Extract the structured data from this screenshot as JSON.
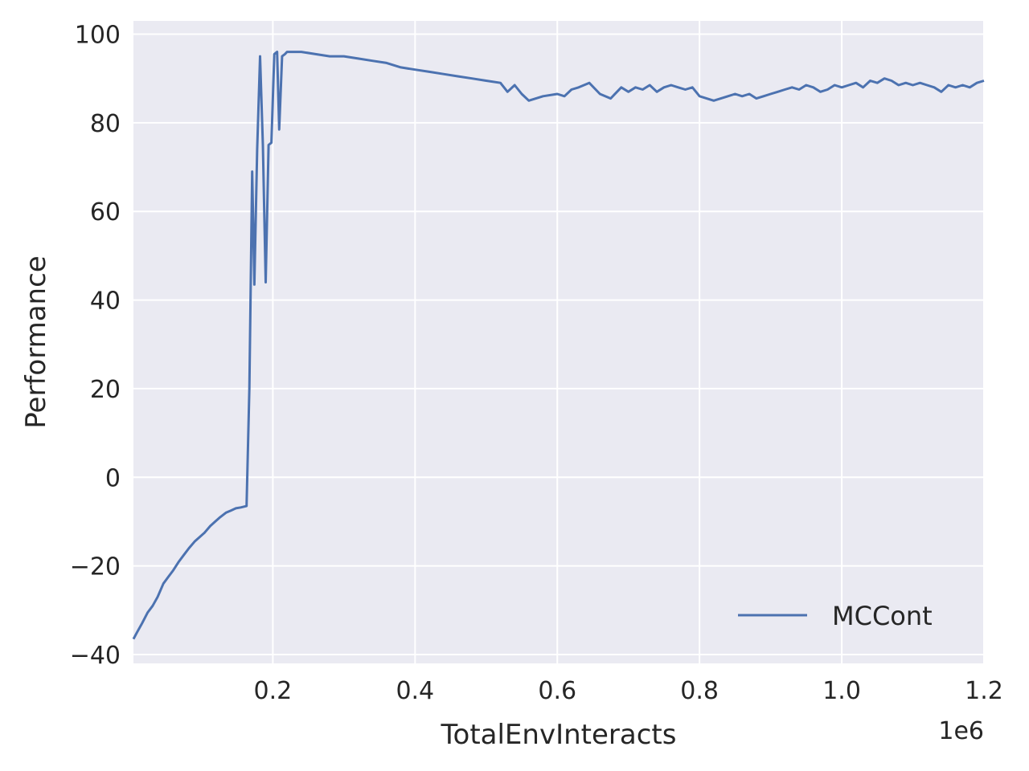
{
  "chart_data": {
    "type": "line",
    "xlabel": "TotalEnvInteracts",
    "ylabel": "Performance",
    "x_offset_label": "1e6",
    "xlim": [
      0.004,
      1.2
    ],
    "ylim": [
      -42,
      103
    ],
    "grid": true,
    "legend_position": "lower-right",
    "x_ticks": [
      0.2,
      0.4,
      0.6,
      0.8,
      1.0,
      1.2
    ],
    "x_tick_labels": [
      "0.2",
      "0.4",
      "0.6",
      "0.8",
      "1.0",
      "1.2"
    ],
    "y_ticks": [
      -40,
      -20,
      0,
      20,
      40,
      60,
      80,
      100
    ],
    "y_tick_labels": [
      "−40",
      "−20",
      "0",
      "20",
      "40",
      "60",
      "80",
      "100"
    ],
    "colors": {
      "background": "#eaeaf2",
      "grid": "#ffffff",
      "line": "#4c72b0"
    },
    "series": [
      {
        "name": "MCCont",
        "x": [
          0.004,
          0.009,
          0.016,
          0.024,
          0.031,
          0.038,
          0.046,
          0.053,
          0.06,
          0.068,
          0.075,
          0.082,
          0.09,
          0.097,
          0.104,
          0.112,
          0.119,
          0.126,
          0.134,
          0.141,
          0.148,
          0.155,
          0.163,
          0.167,
          0.171,
          0.174,
          0.178,
          0.182,
          0.186,
          0.19,
          0.194,
          0.198,
          0.202,
          0.206,
          0.209,
          0.213,
          0.217,
          0.22,
          0.24,
          0.26,
          0.28,
          0.3,
          0.32,
          0.34,
          0.36,
          0.38,
          0.4,
          0.42,
          0.44,
          0.46,
          0.48,
          0.5,
          0.52,
          0.53,
          0.54,
          0.55,
          0.56,
          0.58,
          0.6,
          0.61,
          0.62,
          0.63,
          0.645,
          0.66,
          0.675,
          0.69,
          0.7,
          0.71,
          0.72,
          0.73,
          0.74,
          0.75,
          0.76,
          0.77,
          0.78,
          0.79,
          0.8,
          0.81,
          0.82,
          0.83,
          0.84,
          0.85,
          0.86,
          0.87,
          0.88,
          0.89,
          0.9,
          0.91,
          0.92,
          0.93,
          0.94,
          0.95,
          0.96,
          0.97,
          0.98,
          0.99,
          1.0,
          1.01,
          1.02,
          1.03,
          1.04,
          1.05,
          1.06,
          1.07,
          1.08,
          1.09,
          1.1,
          1.11,
          1.12,
          1.13,
          1.14,
          1.15,
          1.16,
          1.17,
          1.18,
          1.19,
          1.2
        ],
        "values": [
          -36.5,
          -35.0,
          -33.0,
          -30.5,
          -29.0,
          -27.0,
          -24.0,
          -22.5,
          -21.0,
          -19.0,
          -17.5,
          -16.0,
          -14.5,
          -13.5,
          -12.5,
          -11.0,
          -10.0,
          -9.0,
          -8.0,
          -7.5,
          -7.0,
          -6.8,
          -6.5,
          20.0,
          69.0,
          43.5,
          74.0,
          95.0,
          75.0,
          44.0,
          75.0,
          75.5,
          95.5,
          96.0,
          78.5,
          95.0,
          95.5,
          96.0,
          96.0,
          95.5,
          95.0,
          95.0,
          94.5,
          94.0,
          93.5,
          92.5,
          92.0,
          91.5,
          91.0,
          90.5,
          90.0,
          89.5,
          89.0,
          87.0,
          88.5,
          86.5,
          85.0,
          86.0,
          86.5,
          86.0,
          87.5,
          88.0,
          89.0,
          86.5,
          85.5,
          88.0,
          87.0,
          88.0,
          87.5,
          88.5,
          87.0,
          88.0,
          88.5,
          88.0,
          87.5,
          88.0,
          86.0,
          85.5,
          85.0,
          85.5,
          86.0,
          86.5,
          86.0,
          86.5,
          85.5,
          86.0,
          86.5,
          87.0,
          87.5,
          88.0,
          87.5,
          88.5,
          88.0,
          87.0,
          87.5,
          88.5,
          88.0,
          88.5,
          89.0,
          88.0,
          89.5,
          89.0,
          90.0,
          89.5,
          88.5,
          89.0,
          88.5,
          89.0,
          88.5,
          88.0,
          87.0,
          88.5,
          88.0,
          88.5,
          88.0,
          89.0,
          89.5
        ]
      }
    ]
  }
}
